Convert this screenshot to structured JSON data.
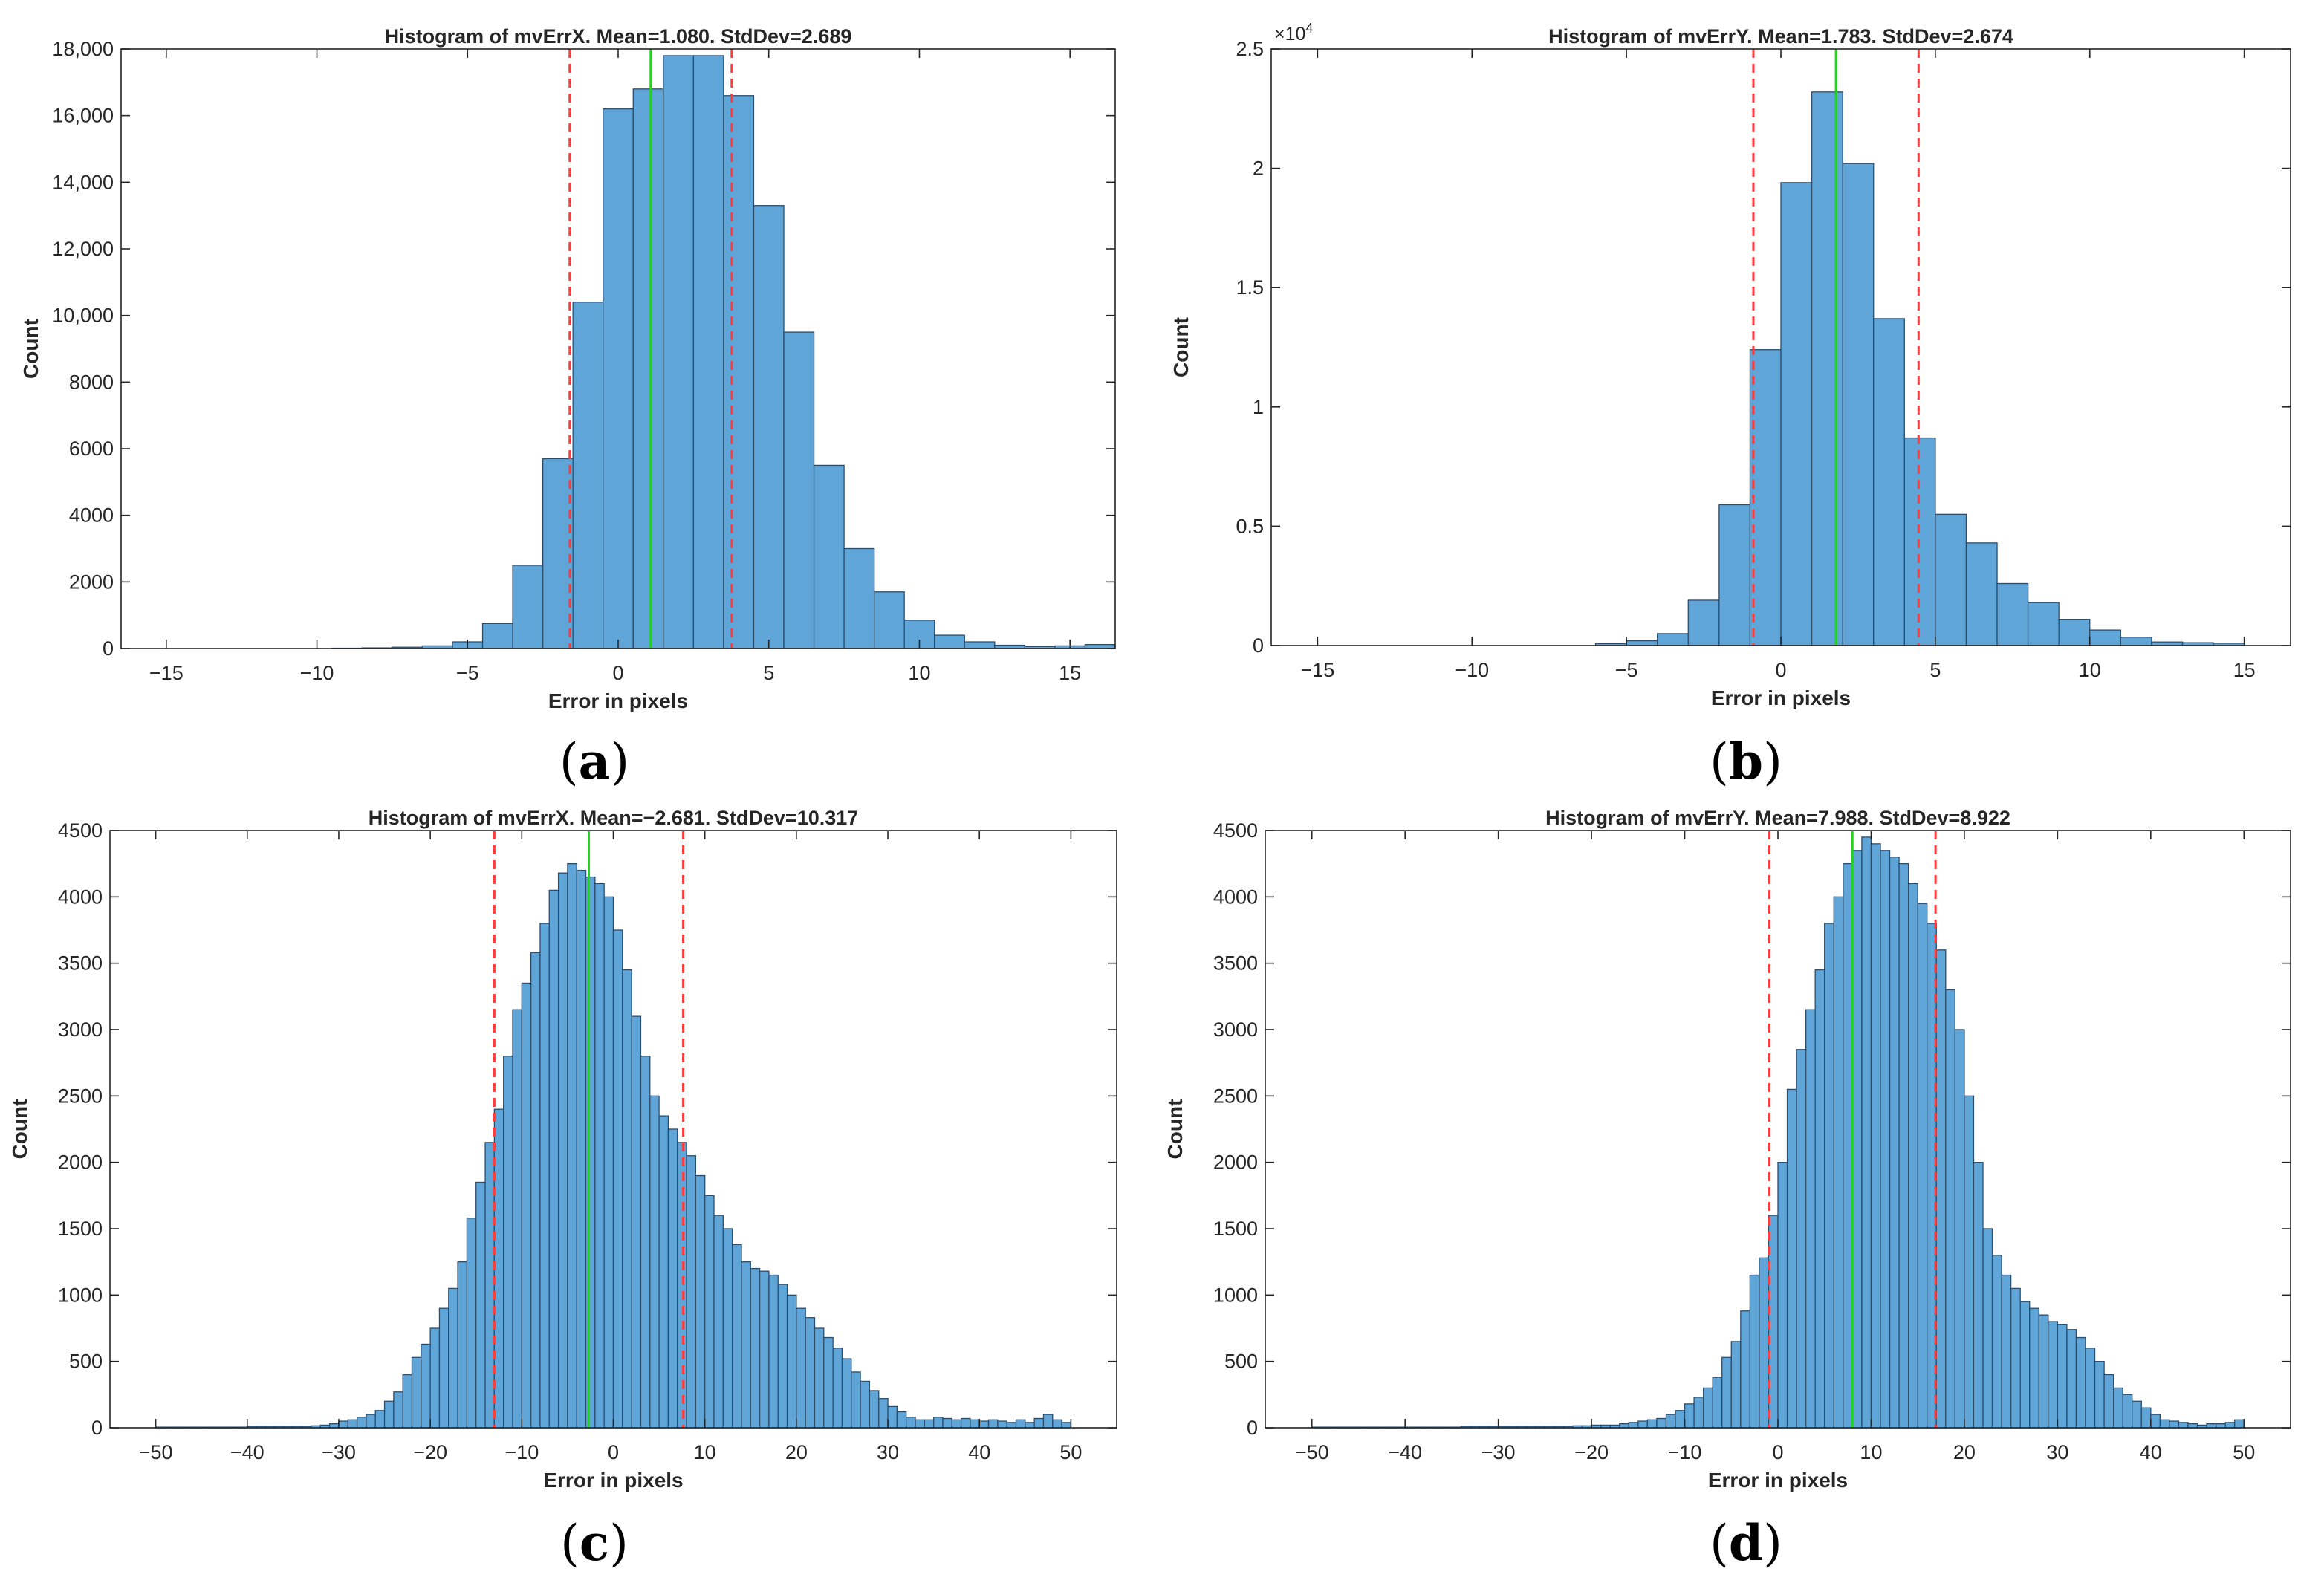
{
  "colors": {
    "bar_fill": "#5fa5d8",
    "bar_edge": "#2b4d6e",
    "axis": "#262626",
    "std_line": "#ff3b3b",
    "mean_line": "#21d21f"
  },
  "chart_data": [
    {
      "type": "bar",
      "panel_label": "a",
      "title": "Histogram of mvErrX.  Mean=1.080. StdDev=2.689",
      "xlabel": "Error in pixels",
      "ylabel": "Count",
      "xlim": [
        -16.5,
        16.5
      ],
      "ylim": [
        0,
        18000
      ],
      "xticks": [
        -15,
        -10,
        -5,
        0,
        5,
        10,
        15
      ],
      "xtick_labels": [
        "−15",
        "−10",
        "−5",
        "0",
        "5",
        "10",
        "15"
      ],
      "yticks": [
        0,
        2000,
        4000,
        6000,
        8000,
        10000,
        12000,
        14000,
        16000,
        18000
      ],
      "ytick_labels": [
        "0",
        "2000",
        "4000",
        "6000",
        "8000",
        "10,000",
        "12,000",
        "14,000",
        "16,000",
        "18,000"
      ],
      "y_exponent": null,
      "bin_edges_start": -15.5,
      "bin_width": 1,
      "values": [
        0,
        0,
        0,
        0,
        0,
        0,
        10,
        20,
        40,
        80,
        200,
        750,
        2500,
        5700,
        10400,
        16200,
        16800,
        17800,
        17800,
        16600,
        13300,
        9500,
        5500,
        3000,
        1700,
        850,
        400,
        200,
        100,
        60,
        80,
        120
      ],
      "mean": 1.08,
      "std_lines": [
        -1.609,
        3.769
      ]
    },
    {
      "type": "bar",
      "panel_label": "b",
      "title": "Histogram of mvErrY.  Mean=1.783. StdDev=2.674",
      "xlabel": "Error in pixels",
      "ylabel": "Count",
      "xlim": [
        -16.5,
        16.5
      ],
      "ylim": [
        0,
        25000
      ],
      "xticks": [
        -15,
        -10,
        -5,
        0,
        5,
        10,
        15
      ],
      "xtick_labels": [
        "−15",
        "−10",
        "−5",
        "0",
        "5",
        "10",
        "15"
      ],
      "yticks": [
        0,
        5000,
        10000,
        15000,
        20000,
        25000
      ],
      "ytick_labels": [
        "0",
        "0.5",
        "1",
        "1.5",
        "2",
        "2.5"
      ],
      "y_exponent": "4",
      "bin_edges_start": -6,
      "bin_width": 1,
      "values": [
        80,
        200,
        500,
        1900,
        5900,
        12400,
        19400,
        23200,
        20200,
        13700,
        8700,
        5500,
        4300,
        2600,
        1800,
        1100,
        650,
        350,
        150,
        120,
        100
      ],
      "mean": 1.783,
      "std_lines": [
        -0.891,
        4.457
      ]
    },
    {
      "type": "bar",
      "panel_label": "c",
      "title": "Histogram of mvErrX.  Mean=−2.681. StdDev=10.317",
      "xlabel": "Error in pixels",
      "ylabel": "Count",
      "xlim": [
        -55,
        55
      ],
      "ylim": [
        0,
        4500
      ],
      "xticks": [
        -50,
        -40,
        -30,
        -20,
        -10,
        0,
        10,
        20,
        30,
        40,
        50
      ],
      "xtick_labels": [
        "−50",
        "−40",
        "−30",
        "−20",
        "−10",
        "0",
        "10",
        "20",
        "30",
        "40",
        "50"
      ],
      "yticks": [
        0,
        500,
        1000,
        1500,
        2000,
        2500,
        3000,
        3500,
        4000,
        4500
      ],
      "ytick_labels": [
        "0",
        "500",
        "1000",
        "1500",
        "2000",
        "2500",
        "3000",
        "3500",
        "4000",
        "4500"
      ],
      "y_exponent": null,
      "bin_edges_start": -50,
      "bin_width": 1,
      "values": [
        5,
        5,
        5,
        5,
        5,
        5,
        5,
        5,
        5,
        5,
        10,
        10,
        10,
        10,
        10,
        10,
        10,
        15,
        20,
        30,
        50,
        60,
        80,
        100,
        130,
        200,
        270,
        400,
        530,
        630,
        750,
        900,
        1050,
        1250,
        1580,
        1850,
        2150,
        2400,
        2800,
        3150,
        3350,
        3580,
        3800,
        4050,
        4180,
        4250,
        4200,
        4150,
        4100,
        4000,
        3750,
        3450,
        3100,
        2800,
        2500,
        2350,
        2250,
        2150,
        2050,
        1900,
        1750,
        1600,
        1500,
        1380,
        1250,
        1200,
        1180,
        1150,
        1080,
        1000,
        900,
        830,
        750,
        680,
        600,
        520,
        420,
        350,
        280,
        220,
        160,
        120,
        80,
        60,
        60,
        80,
        70,
        60,
        70,
        60,
        50,
        60,
        50,
        40,
        60,
        40,
        70,
        100,
        60,
        40
      ],
      "mean": -2.681,
      "std_lines": [
        -12.998,
        7.636
      ]
    },
    {
      "type": "bar",
      "panel_label": "d",
      "title": "Histogram of mvErrY.  Mean=7.988. StdDev=8.922",
      "xlabel": "Error in pixels",
      "ylabel": "Count",
      "xlim": [
        -55,
        55
      ],
      "ylim": [
        0,
        4500
      ],
      "xticks": [
        -50,
        -40,
        -30,
        -20,
        -10,
        0,
        10,
        20,
        30,
        40,
        50
      ],
      "xtick_labels": [
        "−50",
        "−40",
        "−30",
        "−20",
        "−10",
        "0",
        "10",
        "20",
        "30",
        "40",
        "50"
      ],
      "yticks": [
        0,
        500,
        1000,
        1500,
        2000,
        2500,
        3000,
        3500,
        4000,
        4500
      ],
      "ytick_labels": [
        "0",
        "500",
        "1000",
        "1500",
        "2000",
        "2500",
        "3000",
        "3500",
        "4000",
        "4500"
      ],
      "y_exponent": null,
      "bin_edges_start": -50,
      "bin_width": 1,
      "values": [
        5,
        5,
        5,
        5,
        5,
        5,
        5,
        5,
        5,
        5,
        5,
        5,
        5,
        5,
        5,
        5,
        10,
        10,
        10,
        10,
        10,
        10,
        10,
        10,
        10,
        10,
        10,
        10,
        15,
        15,
        20,
        20,
        20,
        30,
        40,
        50,
        60,
        70,
        100,
        130,
        180,
        230,
        300,
        380,
        530,
        650,
        880,
        1150,
        1280,
        1600,
        2000,
        2550,
        2850,
        3150,
        3450,
        3800,
        4000,
        4250,
        4350,
        4450,
        4400,
        4350,
        4300,
        4250,
        4100,
        3950,
        3800,
        3600,
        3300,
        3000,
        2500,
        2000,
        1500,
        1300,
        1150,
        1050,
        950,
        900,
        850,
        800,
        780,
        740,
        680,
        600,
        500,
        400,
        300,
        250,
        200,
        150,
        100,
        60,
        50,
        40,
        30,
        20,
        30,
        30,
        40,
        60
      ],
      "mean": 7.988,
      "std_lines": [
        -0.934,
        16.91
      ]
    }
  ]
}
